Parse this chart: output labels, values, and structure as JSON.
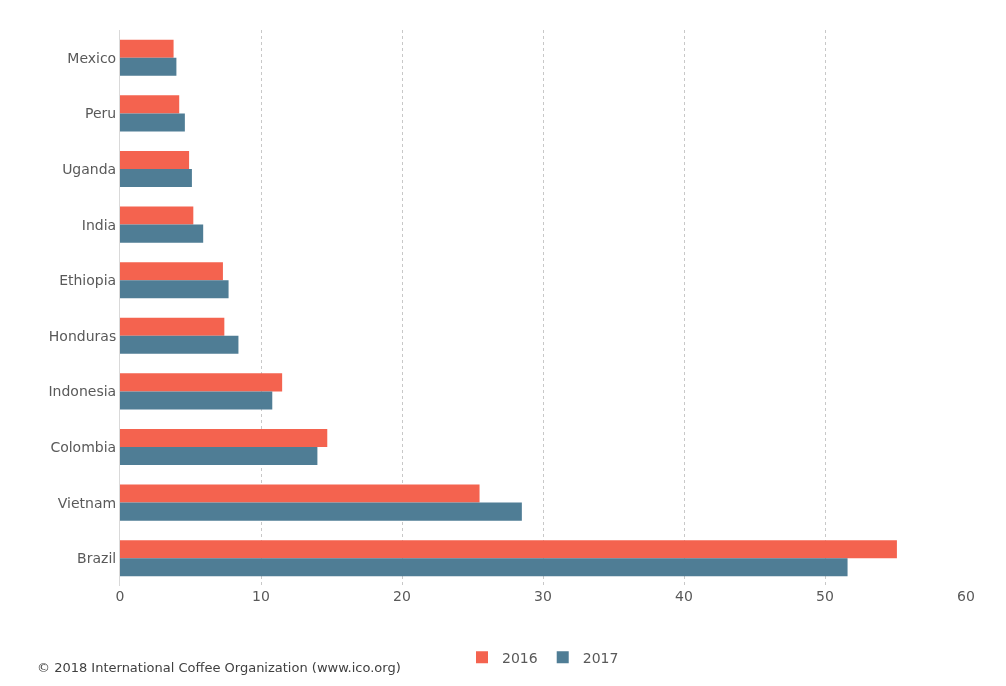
{
  "chart_data": {
    "type": "bar",
    "orientation": "horizontal",
    "categories": [
      "Mexico",
      "Peru",
      "Uganda",
      "India",
      "Ethiopia",
      "Honduras",
      "Indonesia",
      "Colombia",
      "Vietnam",
      "Brazil"
    ],
    "series": [
      {
        "name": "2016",
        "color": "#f4634f",
        "values": [
          3.8,
          4.2,
          4.9,
          5.2,
          7.3,
          7.4,
          11.5,
          14.7,
          25.5,
          55.1
        ]
      },
      {
        "name": "2017",
        "color": "#4f7d95",
        "values": [
          4.0,
          4.6,
          5.1,
          5.9,
          7.7,
          8.4,
          10.8,
          14.0,
          28.5,
          51.6
        ]
      }
    ],
    "xlim": [
      0,
      60
    ],
    "xticks": [
      0,
      10,
      20,
      30,
      40,
      50,
      60
    ],
    "grid": "x",
    "legend": "bottom",
    "annotations": [
      "© 2018 International Coffee Organization (www.ico.org)"
    ]
  }
}
